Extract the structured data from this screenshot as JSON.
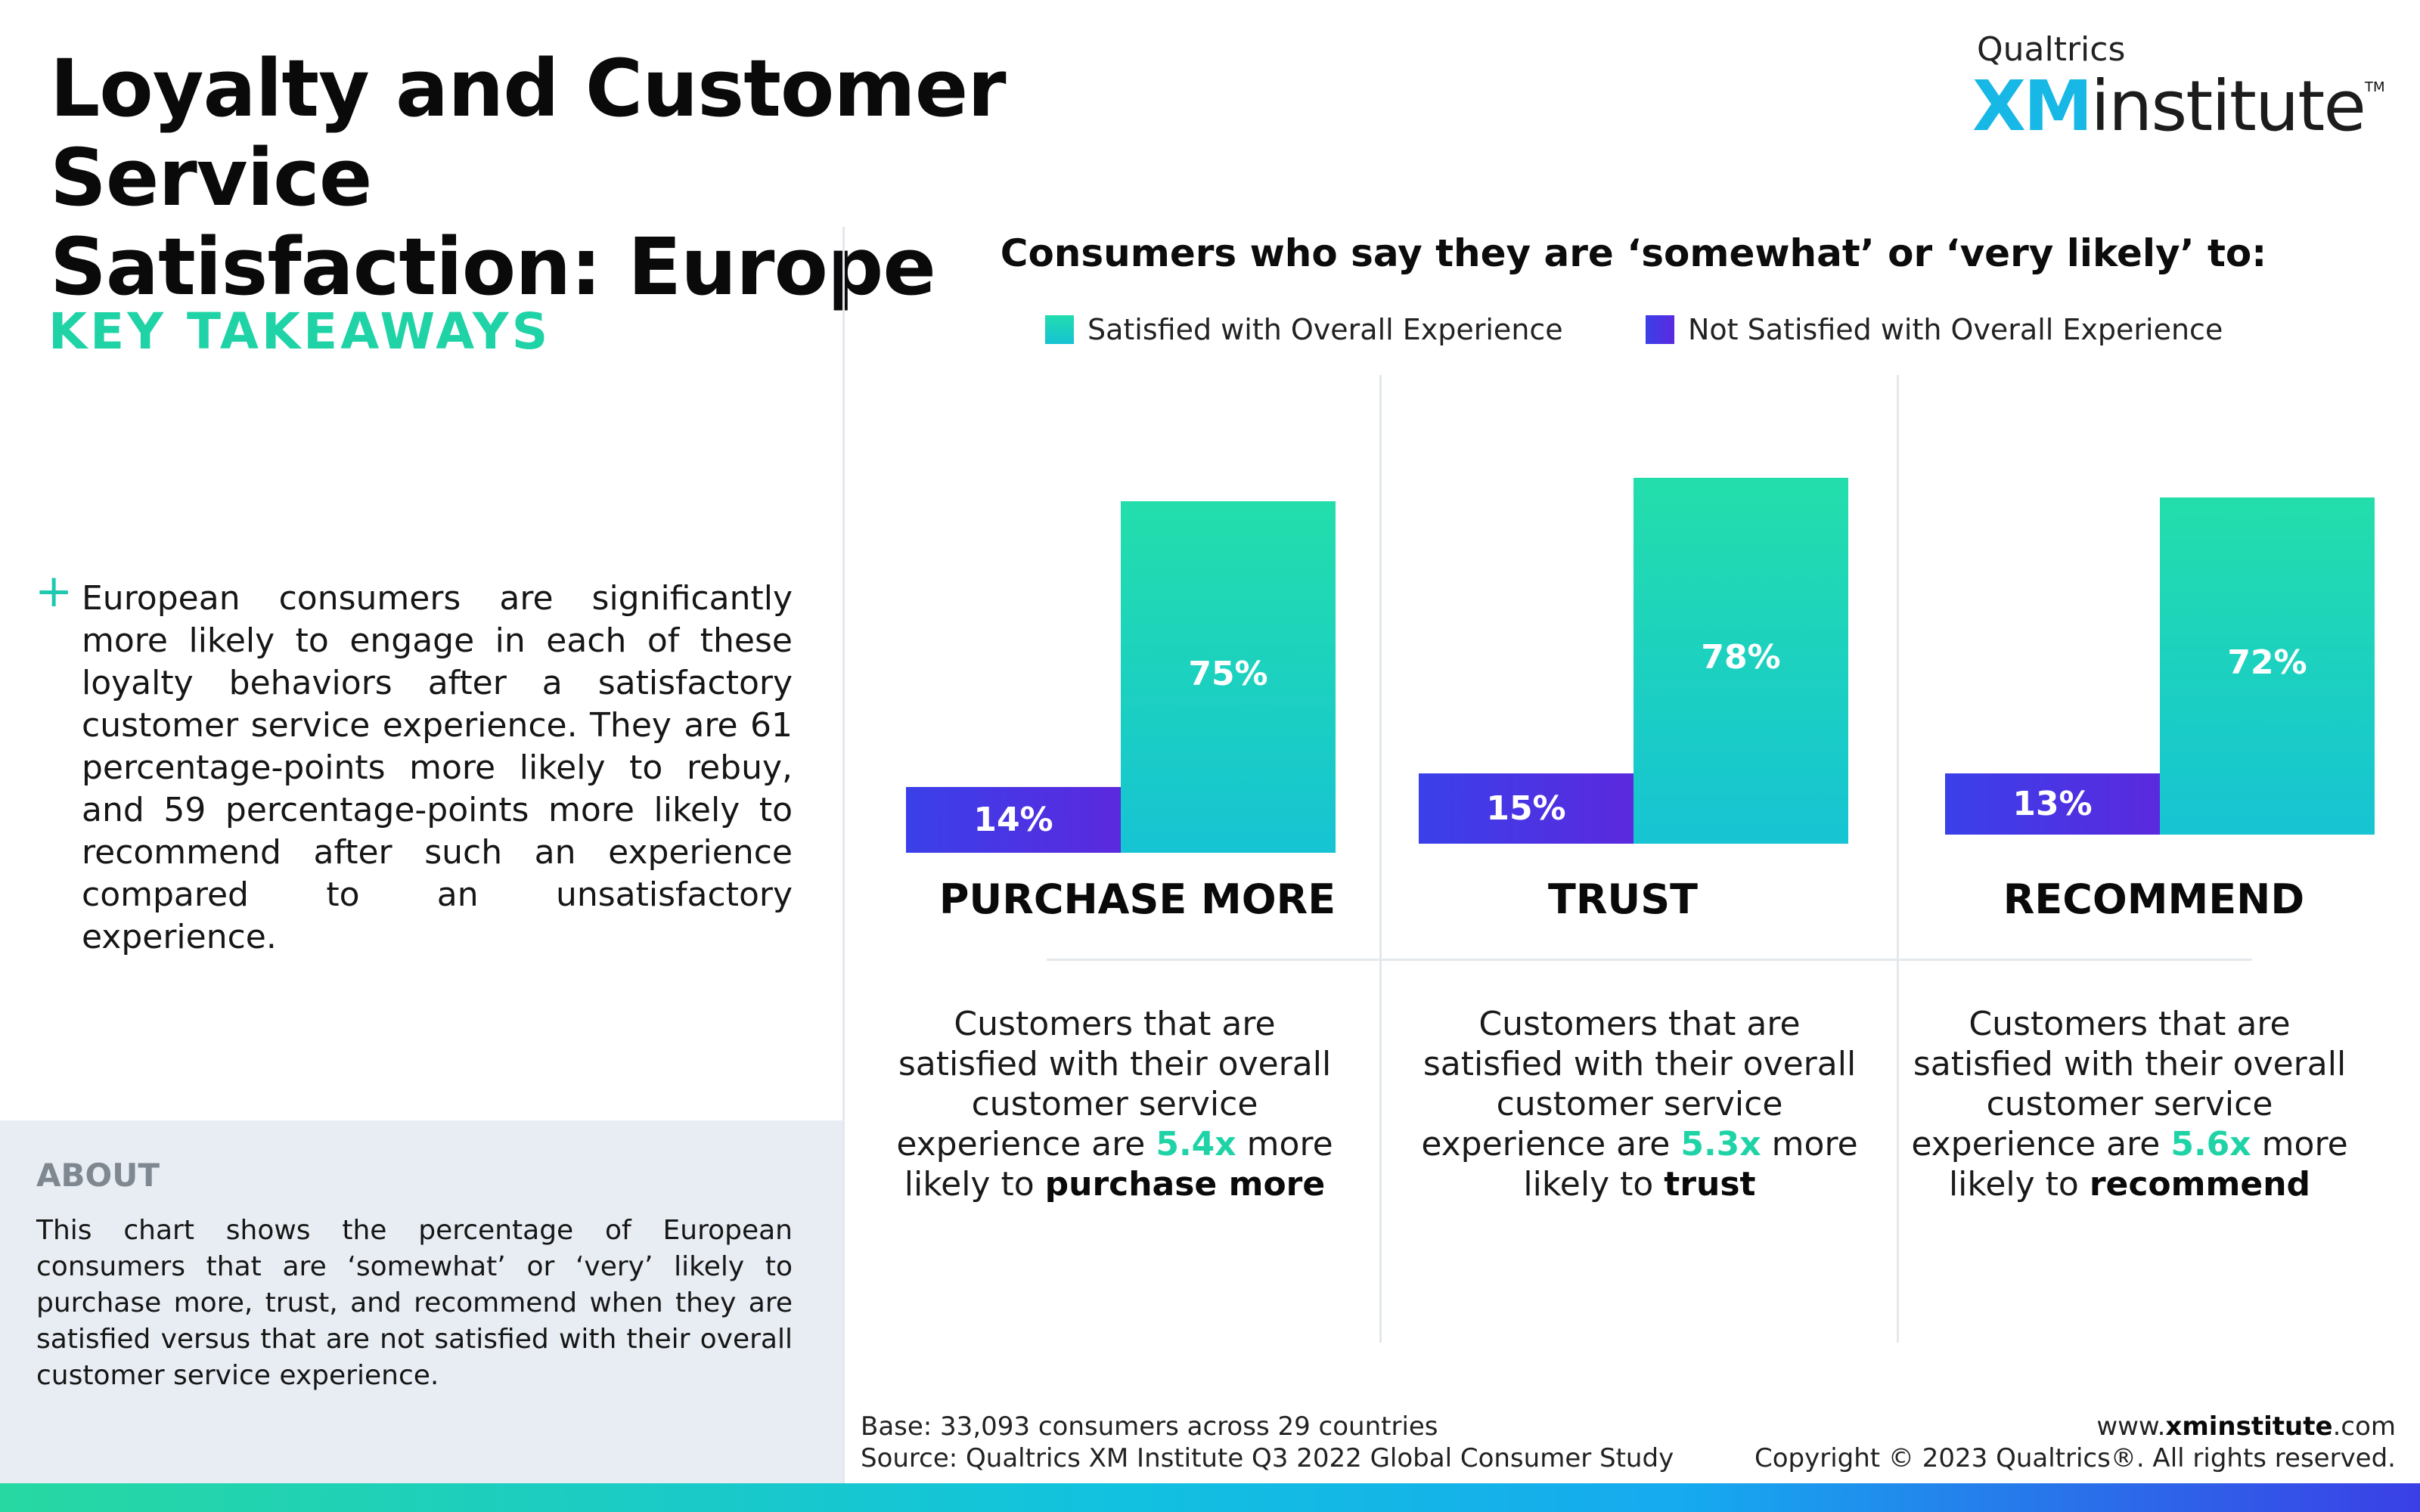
{
  "title_line1": "Loyalty and Customer Service",
  "title_line2": "Satisfaction: Europe",
  "logo": {
    "brand": "Qualtrics",
    "xm": "XM",
    "institute": "institute",
    "tm": "TM"
  },
  "takeaways": {
    "heading": "KEY TAKEAWAYS",
    "bullet_icon": "+",
    "text": "European consumers are significantly more likely to engage in each of these loyalty behaviors after a satisfactory customer service experience. They are 61 percentage-points more likely to rebuy, and 59 percentage-points more likely to recommend after such an experience compared to an unsatisfactory experience."
  },
  "about": {
    "heading": "ABOUT",
    "text": "This chart shows the percentage of European consumers that are ‘somewhat’ or ‘very’ likely to purchase more, trust, and recommend when they are satisfied versus that are not satisfied with their overall customer service experience."
  },
  "chart_data": {
    "type": "bar",
    "title": "Consumers who say they are ‘somewhat’ or ‘very likely’ to:",
    "categories": [
      "PURCHASE MORE",
      "TRUST",
      "RECOMMEND"
    ],
    "series": [
      {
        "name": "Not Satisfied with Overall Experience",
        "values": [
          14,
          15,
          13
        ],
        "labels": [
          "14%",
          "15%",
          "13%"
        ],
        "color": "#3f3ce6"
      },
      {
        "name": "Satisfied with Overall Experience",
        "values": [
          75,
          78,
          72
        ],
        "labels": [
          "75%",
          "78%",
          "72%"
        ],
        "color": "#1fd3b4"
      }
    ],
    "legend": [
      "Satisfied with Overall Experience",
      "Not Satisfied with Overall Experience"
    ],
    "legend_position": "top",
    "grid": false,
    "unit": "%"
  },
  "descriptions": [
    {
      "pre": "Customers that are satisfied with their overall customer service experience are",
      "multiplier": "5.4x",
      "mid": "more likely to",
      "verb": "purchase more"
    },
    {
      "pre": "Customers that are satisfied with their overall customer service experience are",
      "multiplier": "5.3x",
      "mid": "more likely to",
      "verb": "trust"
    },
    {
      "pre": "Customers that are satisfied with their overall customer service experience are",
      "multiplier": "5.6x",
      "mid": "more likely to",
      "verb": "recommend"
    }
  ],
  "footer": {
    "base": "Base: 33,093 consumers across 29 countries",
    "source": "Source: Qualtrics XM Institute Q3 2022 Global Consumer Study",
    "site_pre": "www.",
    "site_bold": "xminstitute",
    "site_post": ".com",
    "copyright": "Copyright © 2023 Qualtrics®. All rights reserved."
  }
}
